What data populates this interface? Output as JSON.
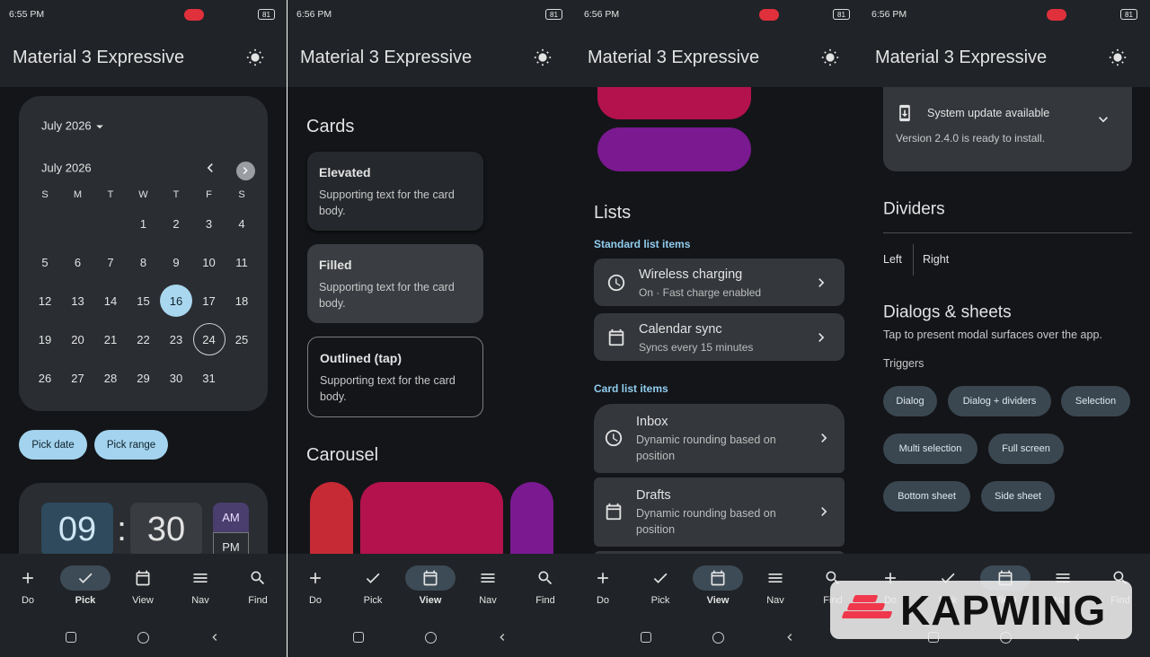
{
  "status_bar": {
    "battery": "81"
  },
  "app_bar_title": "Material 3 Expressive",
  "bottom_nav": [
    "Do",
    "Pick",
    "View",
    "Nav",
    "Find"
  ],
  "screens": [
    {
      "time": "6:55 PM",
      "selected_nav": "Pick"
    },
    {
      "time": "6:56 PM",
      "selected_nav": "View"
    },
    {
      "time": "6:56 PM",
      "selected_nav": "View"
    },
    {
      "time": "6:56 PM",
      "selected_nav": "View"
    }
  ],
  "date_picker": {
    "header": "July 2026",
    "month": "July 2026",
    "weekdays": [
      "S",
      "M",
      "T",
      "W",
      "T",
      "F",
      "S"
    ],
    "weeks": [
      [
        null,
        null,
        null,
        1,
        2,
        3,
        4
      ],
      [
        5,
        6,
        7,
        8,
        9,
        10,
        11
      ],
      [
        12,
        13,
        14,
        15,
        16,
        17,
        18
      ],
      [
        19,
        20,
        21,
        22,
        23,
        24,
        25
      ],
      [
        26,
        27,
        28,
        29,
        30,
        31,
        null
      ]
    ],
    "selected_day": 16,
    "outlined_day": 24
  },
  "picker_buttons": [
    "Pick date",
    "Pick range"
  ],
  "time_picker": {
    "hour": "09",
    "separator": ":",
    "minute": "30",
    "am": "AM",
    "pm": "PM"
  },
  "cards": {
    "heading": "Cards",
    "items": [
      {
        "title": "Elevated",
        "text": "Supporting text for the card body."
      },
      {
        "title": "Filled",
        "text": "Supporting text for the card body."
      },
      {
        "title": "Outlined (tap)",
        "text": "Supporting text for the card body."
      }
    ]
  },
  "carousel": {
    "heading": "Carousel"
  },
  "lists": {
    "heading": "Lists",
    "standard_label": "Standard list items",
    "standard": [
      {
        "title": "Wireless charging",
        "text": "On · Fast charge enabled"
      },
      {
        "title": "Calendar sync",
        "text": "Syncs every 15 minutes"
      }
    ],
    "card_label": "Card list items",
    "card": [
      {
        "title": "Inbox",
        "text": "Dynamic rounding based on position"
      },
      {
        "title": "Drafts",
        "text": "Dynamic rounding based on position"
      }
    ]
  },
  "update": {
    "title": "System update available",
    "text": "Version 2.4.0 is ready to install."
  },
  "dividers": {
    "heading": "Dividers",
    "left": "Left",
    "right": "Right"
  },
  "dialogs": {
    "heading": "Dialogs & sheets",
    "text": "Tap to present modal surfaces over the app.",
    "triggers_label": "Triggers",
    "triggers": [
      "Dialog",
      "Dialog + dividers",
      "Selection",
      "Multi selection",
      "Full screen",
      "Bottom sheet",
      "Side sheet"
    ]
  },
  "watermark": "KAPWING"
}
